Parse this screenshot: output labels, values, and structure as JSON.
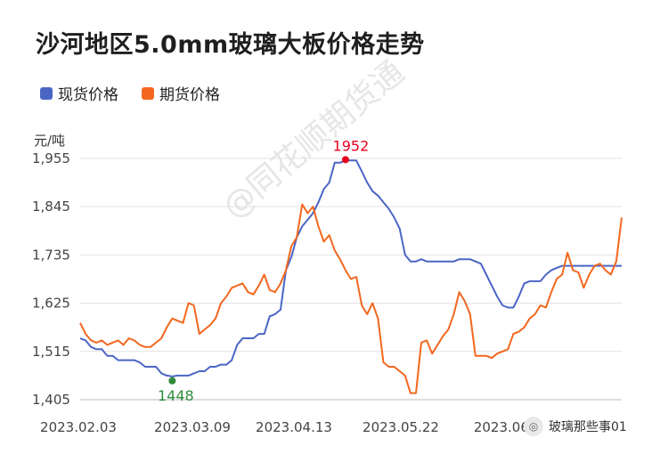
{
  "chart_data": {
    "type": "line",
    "title": "沙河地区5.0mm玻璃大板价格走势",
    "ylabel": "元/吨",
    "ylim": [
      1405,
      1975
    ],
    "yticks": [
      "1,405",
      "1,515",
      "1,625",
      "1,735",
      "1,845",
      "1,955"
    ],
    "xticks": [
      "2023.02.03",
      "2023.03.09",
      "2023.04.13",
      "2023.05.22",
      "2023.06.2"
    ],
    "x_index_range": [
      0,
      100
    ],
    "legend_position": "top-left",
    "grid": "horizontal",
    "background_watermark": "@同花顺期货通",
    "series": [
      {
        "name": "现货价格",
        "color": "#4a66c5",
        "x": [
          0,
          1,
          2,
          3,
          4,
          5,
          6,
          7,
          8,
          9,
          10,
          11,
          12,
          13,
          14,
          15,
          16,
          17,
          18,
          19,
          20,
          21,
          22,
          23,
          24,
          25,
          26,
          27,
          28,
          29,
          30,
          31,
          32,
          33,
          34,
          35,
          36,
          37,
          38,
          39,
          40,
          41,
          42,
          43,
          44,
          45,
          46,
          47,
          48,
          49,
          50,
          51,
          52,
          53,
          54,
          55,
          56,
          57,
          58,
          59,
          60,
          61,
          62,
          63,
          64,
          65,
          66,
          67,
          68,
          69,
          70,
          71,
          72,
          73,
          74,
          75,
          76,
          77,
          78,
          79,
          80,
          81,
          82,
          83,
          84,
          85,
          86,
          87,
          88,
          89,
          90,
          91,
          92,
          93,
          94,
          95,
          96,
          97,
          98,
          99,
          100
        ],
        "values": [
          1545,
          1540,
          1525,
          1520,
          1520,
          1505,
          1505,
          1495,
          1495,
          1495,
          1495,
          1490,
          1480,
          1480,
          1480,
          1465,
          1460,
          1458,
          1460,
          1460,
          1460,
          1465,
          1470,
          1470,
          1480,
          1480,
          1485,
          1485,
          1495,
          1530,
          1545,
          1545,
          1545,
          1555,
          1555,
          1595,
          1600,
          1610,
          1700,
          1730,
          1775,
          1800,
          1815,
          1830,
          1855,
          1885,
          1900,
          1945,
          1945,
          1950,
          1950,
          1950,
          1925,
          1900,
          1880,
          1870,
          1855,
          1840,
          1820,
          1795,
          1735,
          1720,
          1720,
          1725,
          1720,
          1720,
          1720,
          1720,
          1720,
          1720,
          1725,
          1725,
          1725,
          1720,
          1715,
          1690,
          1665,
          1640,
          1620,
          1615,
          1615,
          1640,
          1670,
          1675,
          1675,
          1675,
          1690,
          1700,
          1705,
          1710,
          1710,
          1710,
          1710,
          1710,
          1710,
          1710,
          1710,
          1710,
          1710,
          1710,
          1710
        ]
      },
      {
        "name": "期货价格",
        "color": "#f3671e",
        "x": [
          0,
          1,
          2,
          3,
          4,
          5,
          6,
          7,
          8,
          9,
          10,
          11,
          12,
          13,
          14,
          15,
          16,
          17,
          18,
          19,
          20,
          21,
          22,
          23,
          24,
          25,
          26,
          27,
          28,
          29,
          30,
          31,
          32,
          33,
          34,
          35,
          36,
          37,
          38,
          39,
          40,
          41,
          42,
          43,
          44,
          45,
          46,
          47,
          48,
          49,
          50,
          51,
          52,
          53,
          54,
          55,
          56,
          57,
          58,
          59,
          60,
          61,
          62,
          63,
          64,
          65,
          66,
          67,
          68,
          69,
          70,
          71,
          72,
          73,
          74,
          75,
          76,
          77,
          78,
          79,
          80,
          81,
          82,
          83,
          84,
          85,
          86,
          87,
          88,
          89,
          90,
          91,
          92,
          93,
          94,
          95,
          96,
          97,
          98,
          99,
          100
        ],
        "values": [
          1580,
          1555,
          1540,
          1535,
          1540,
          1530,
          1535,
          1540,
          1530,
          1545,
          1540,
          1530,
          1525,
          1525,
          1535,
          1545,
          1570,
          1590,
          1585,
          1580,
          1625,
          1620,
          1555,
          1565,
          1575,
          1590,
          1625,
          1640,
          1660,
          1665,
          1670,
          1650,
          1645,
          1665,
          1690,
          1655,
          1650,
          1670,
          1700,
          1755,
          1775,
          1850,
          1830,
          1845,
          1800,
          1765,
          1780,
          1745,
          1725,
          1700,
          1680,
          1685,
          1620,
          1600,
          1625,
          1590,
          1490,
          1480,
          1480,
          1470,
          1460,
          1420,
          1420,
          1535,
          1540,
          1510,
          1530,
          1550,
          1565,
          1600,
          1650,
          1630,
          1600,
          1505,
          1505,
          1505,
          1500,
          1510,
          1515,
          1520,
          1555,
          1560,
          1570,
          1590,
          1600,
          1620,
          1615,
          1650,
          1680,
          1690,
          1740,
          1700,
          1695,
          1660,
          1690,
          1710,
          1715,
          1700,
          1690,
          1720,
          1820
        ]
      }
    ],
    "annotations": [
      {
        "text": "1952",
        "series": "现货价格",
        "x": 49,
        "y": 1952,
        "color": "#e8001c"
      },
      {
        "text": "1448",
        "series": "现货价格",
        "x": 17,
        "y": 1448,
        "color": "#2e8b3a"
      }
    ]
  },
  "watermark_footer": {
    "text": "玻璃那些事01",
    "icon": "wechat-icon"
  }
}
